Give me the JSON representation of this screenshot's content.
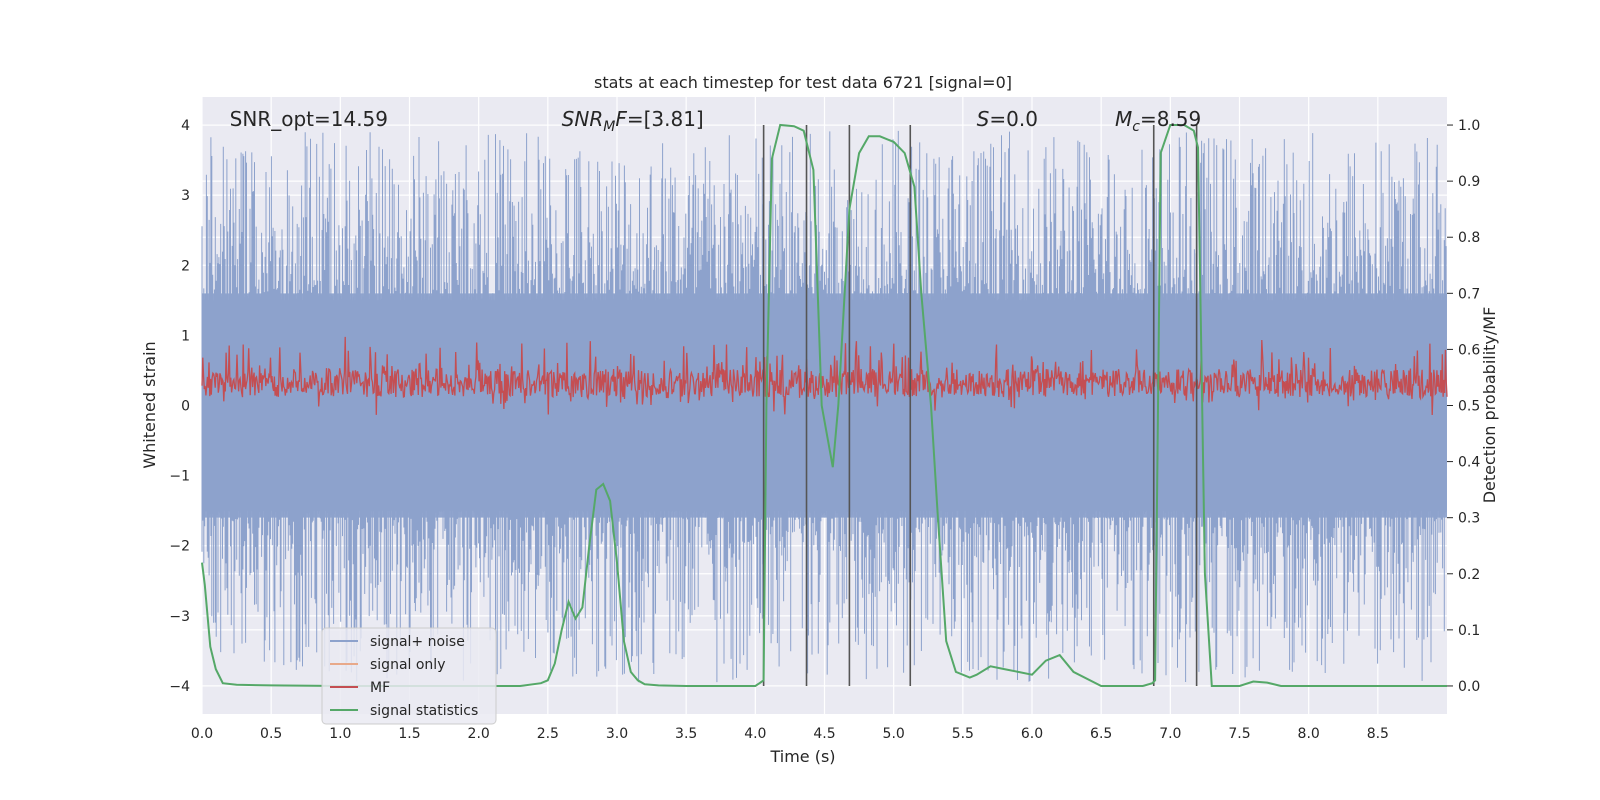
{
  "chart_data": {
    "type": "line",
    "title": "stats at each timestep for test data 6721 [signal=0]",
    "xlabel": "Time (s)",
    "ylabel_left": "Whitened strain",
    "ylabel_right": "Detection probability/MF",
    "xlim": [
      0,
      9.0
    ],
    "ylim_left": [
      -4.4,
      4.4
    ],
    "ylim_right": [
      -0.05,
      1.05
    ],
    "x_ticks": [
      "0.0",
      "0.5",
      "1.0",
      "1.5",
      "2.0",
      "2.5",
      "3.0",
      "3.5",
      "4.0",
      "4.5",
      "5.0",
      "5.5",
      "6.0",
      "6.5",
      "7.0",
      "7.5",
      "8.0",
      "8.5"
    ],
    "x_tick_values": [
      0,
      0.5,
      1,
      1.5,
      2,
      2.5,
      3,
      3.5,
      4,
      4.5,
      5,
      5.5,
      6,
      6.5,
      7,
      7.5,
      8,
      8.5
    ],
    "y_left_ticks": [
      "−4",
      "−3",
      "−2",
      "−1",
      "0",
      "1",
      "2",
      "3",
      "4"
    ],
    "y_left_tick_values": [
      -4,
      -3,
      -2,
      -1,
      0,
      1,
      2,
      3,
      4
    ],
    "y_right_ticks": [
      "0.0",
      "0.1",
      "0.2",
      "0.3",
      "0.4",
      "0.5",
      "0.6",
      "0.7",
      "0.8",
      "0.9",
      "1.0"
    ],
    "y_right_tick_values": [
      0,
      0.1,
      0.2,
      0.3,
      0.4,
      0.5,
      0.6,
      0.7,
      0.8,
      0.9,
      1.0
    ],
    "annotations": [
      {
        "text": "SNR_opt=14.59",
        "x": 0.2,
        "y": 4.1
      },
      {
        "base": "SNR",
        "sub": "M",
        "rest": "F=[3.81]",
        "x": 2.6,
        "y": 4.1
      },
      {
        "base": "S",
        "sub": "",
        "rest": "=0.0",
        "x": 5.6,
        "y": 4.1
      },
      {
        "base": "M",
        "sub": "c",
        "rest": "=8.59",
        "x": 6.6,
        "y": 4.1
      }
    ],
    "vlines": [
      4.06,
      4.37,
      4.68,
      5.12,
      6.88,
      7.19
    ],
    "series": [
      {
        "name": "signal+ noise",
        "color": "#8da2cc",
        "axis": "left",
        "envelope": {
          "dense_low": -1.6,
          "dense_high": 1.6,
          "spike_max": 3.95,
          "spike_min": -3.95
        }
      },
      {
        "name": "signal only",
        "color": "#e8a98a",
        "axis": "left",
        "values": []
      },
      {
        "name": "MF",
        "color": "#c44e52",
        "axis": "right",
        "band": [
          0.5,
          0.62
        ]
      },
      {
        "name": "signal statistics",
        "color": "#55a868",
        "axis": "right",
        "x": [
          0,
          0.02,
          0.06,
          0.1,
          0.15,
          0.25,
          0.5,
          1.0,
          1.5,
          2.0,
          2.3,
          2.45,
          2.5,
          2.55,
          2.6,
          2.65,
          2.7,
          2.75,
          2.8,
          2.85,
          2.9,
          2.95,
          3.0,
          3.05,
          3.1,
          3.15,
          3.2,
          3.3,
          3.5,
          4.0,
          4.03,
          4.06,
          4.08,
          4.12,
          4.18,
          4.28,
          4.35,
          4.42,
          4.48,
          4.56,
          4.6,
          4.68,
          4.75,
          4.82,
          4.9,
          5.0,
          5.08,
          5.15,
          5.2,
          5.27,
          5.32,
          5.38,
          5.45,
          5.55,
          5.6,
          5.7,
          5.8,
          5.9,
          6.0,
          6.1,
          6.2,
          6.3,
          6.5,
          6.8,
          6.87,
          6.89,
          6.93,
          7.0,
          7.1,
          7.17,
          7.2,
          7.25,
          7.3,
          7.4,
          7.5,
          7.6,
          7.7,
          7.8,
          8.0,
          8.5,
          9.0
        ],
        "y": [
          0.22,
          0.18,
          0.07,
          0.03,
          0.005,
          0.002,
          0.001,
          0.0,
          0.0,
          0.0,
          0.0,
          0.005,
          0.01,
          0.04,
          0.1,
          0.15,
          0.12,
          0.14,
          0.25,
          0.35,
          0.36,
          0.33,
          0.22,
          0.08,
          0.025,
          0.01,
          0.003,
          0.001,
          0.0,
          0.0,
          0.005,
          0.01,
          0.5,
          0.94,
          1.0,
          0.998,
          0.99,
          0.92,
          0.5,
          0.39,
          0.5,
          0.85,
          0.95,
          0.98,
          0.98,
          0.97,
          0.95,
          0.89,
          0.7,
          0.5,
          0.3,
          0.08,
          0.025,
          0.015,
          0.02,
          0.035,
          0.03,
          0.025,
          0.02,
          0.045,
          0.055,
          0.025,
          0.0,
          0.0,
          0.005,
          0.01,
          0.95,
          1.0,
          1.0,
          0.99,
          0.96,
          0.2,
          0.0,
          0.0,
          0.0,
          0.008,
          0.006,
          0.0,
          0.0,
          0.0,
          0.0
        ]
      }
    ],
    "legend": {
      "placement": "lower-left",
      "entries": [
        "signal+ noise",
        "signal only",
        "MF",
        "signal statistics"
      ]
    },
    "grid": true,
    "background": "#eaeaf2"
  }
}
